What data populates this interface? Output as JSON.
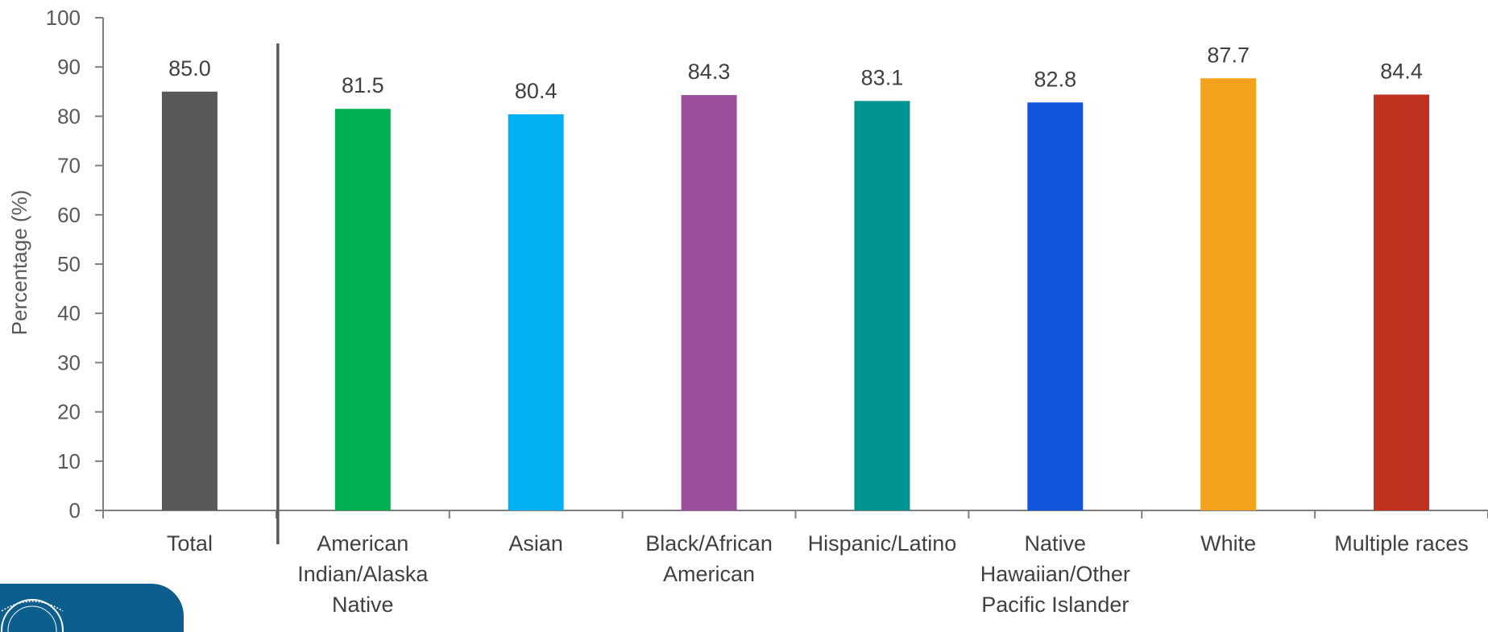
{
  "chart_data": {
    "type": "bar",
    "categories": [
      [
        "Total"
      ],
      [
        "American",
        "Indian/Alaska",
        "Native"
      ],
      [
        "Asian"
      ],
      [
        "Black/African",
        "American"
      ],
      [
        "Hispanic/Latino"
      ],
      [
        "Native",
        "Hawaiian/Other",
        "Pacific Islander"
      ],
      [
        "White"
      ],
      [
        "Multiple races"
      ]
    ],
    "values": [
      85.0,
      81.5,
      80.4,
      84.3,
      83.1,
      82.8,
      87.7,
      84.4
    ],
    "value_labels": [
      "85.0",
      "81.5",
      "80.4",
      "84.3",
      "83.1",
      "82.8",
      "87.7",
      "84.4"
    ],
    "colors": [
      "#595959",
      "#00b050",
      "#00b0f0",
      "#9b4f9b",
      "#009490",
      "#1155dd",
      "#f4a11e",
      "#c0311f"
    ],
    "title": "",
    "xlabel": "",
    "ylabel": "Percentage (%)",
    "ylim": [
      0,
      100
    ],
    "yticks": [
      0,
      10,
      20,
      30,
      40,
      50,
      60,
      70,
      80,
      90,
      100
    ],
    "grid": false,
    "legend": "none",
    "separator_after_category": 0
  },
  "logo": {
    "name": "hhs-seal-badge",
    "color": "#0b5e8e"
  }
}
